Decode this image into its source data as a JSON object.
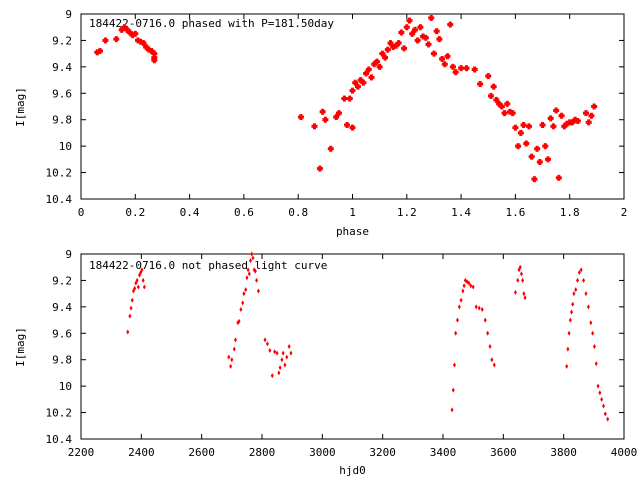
{
  "chart_data": [
    {
      "type": "scatter",
      "title": "184422-0716.0 phased with P=181.50day",
      "xlabel": "phase",
      "ylabel": "I[mag]",
      "xlim": [
        0,
        2
      ],
      "ylim": [
        9,
        10.4
      ],
      "y_inverted": true,
      "xticks": [
        "0",
        "0.2",
        "0.4",
        "0.6",
        "0.8",
        "1",
        "1.2",
        "1.4",
        "1.6",
        "1.8",
        "2"
      ],
      "yticks": [
        "9",
        "9.2",
        "9.4",
        "9.6",
        "9.8",
        "10",
        "10.2",
        "10.4"
      ],
      "xtick_values": [
        0,
        0.2,
        0.4,
        0.6,
        0.8,
        1,
        1.2,
        1.4,
        1.6,
        1.8,
        2
      ],
      "ytick_values": [
        9,
        9.2,
        9.4,
        9.6,
        9.8,
        10,
        10.2,
        10.4
      ],
      "marker_color": "#ff0000",
      "marker": "cross",
      "series": [
        {
          "x": [
            0.06,
            0.07,
            0.09,
            0.13,
            0.15,
            0.16,
            0.17,
            0.18,
            0.19,
            0.2,
            0.21,
            0.22,
            0.23,
            0.24,
            0.25,
            0.26,
            0.27,
            0.27,
            0.27,
            0.81,
            0.86,
            0.88,
            0.89,
            0.9,
            0.92,
            0.94,
            0.95,
            0.97,
            0.98,
            0.99,
            1.0,
            1.0,
            1.01,
            1.02,
            1.03,
            1.04,
            1.05,
            1.06,
            1.07,
            1.08,
            1.09,
            1.1,
            1.11,
            1.12,
            1.13,
            1.14,
            1.15,
            1.16,
            1.17,
            1.18,
            1.19,
            1.2,
            1.21,
            1.22,
            1.23,
            1.24,
            1.25,
            1.26,
            1.27,
            1.28,
            1.29,
            1.3,
            1.31,
            1.32,
            1.33,
            1.34,
            1.35,
            1.36,
            1.37,
            1.38,
            1.4,
            1.42,
            1.45,
            1.47,
            1.5,
            1.51,
            1.52,
            1.53,
            1.54,
            1.55,
            1.56,
            1.57,
            1.58,
            1.59,
            1.6,
            1.61,
            1.62,
            1.63,
            1.64,
            1.65,
            1.66,
            1.67,
            1.68,
            1.69,
            1.7,
            1.71,
            1.72,
            1.73,
            1.74,
            1.75,
            1.76,
            1.77,
            1.78,
            1.79,
            1.8,
            1.81,
            1.82,
            1.83,
            1.86,
            1.87,
            1.88,
            1.89
          ],
          "y": [
            9.29,
            9.28,
            9.2,
            9.19,
            9.12,
            9.1,
            9.12,
            9.14,
            9.16,
            9.15,
            9.2,
            9.21,
            9.22,
            9.25,
            9.27,
            9.28,
            9.3,
            9.33,
            9.35,
            9.78,
            9.85,
            10.17,
            9.74,
            9.8,
            10.02,
            9.78,
            9.75,
            9.64,
            9.84,
            9.64,
            9.58,
            9.86,
            9.52,
            9.55,
            9.5,
            9.52,
            9.45,
            9.42,
            9.48,
            9.38,
            9.36,
            9.4,
            9.3,
            9.33,
            9.27,
            9.22,
            9.25,
            9.24,
            9.22,
            9.14,
            9.26,
            9.1,
            9.05,
            9.15,
            9.12,
            9.2,
            9.1,
            9.17,
            9.18,
            9.23,
            9.03,
            9.3,
            9.13,
            9.19,
            9.34,
            9.38,
            9.32,
            9.08,
            9.4,
            9.44,
            9.41,
            9.41,
            9.42,
            9.53,
            9.47,
            9.62,
            9.55,
            9.65,
            9.68,
            9.7,
            9.75,
            9.68,
            9.74,
            9.75,
            9.86,
            10.0,
            9.9,
            9.84,
            9.98,
            9.85,
            10.08,
            10.25,
            10.02,
            10.12,
            9.84,
            10.0,
            10.1,
            9.79,
            9.85,
            9.73,
            10.24,
            9.77,
            9.85,
            9.83,
            9.82,
            9.82,
            9.8,
            9.81,
            9.75,
            9.82,
            9.77,
            9.7
          ]
        }
      ]
    },
    {
      "type": "scatter",
      "title": "184422-0716.0 not phased light curve",
      "xlabel": "hjd0",
      "ylabel": "I[mag]",
      "xlim": [
        2200,
        4000
      ],
      "ylim": [
        9,
        10.4
      ],
      "y_inverted": true,
      "xticks": [
        "2200",
        "2400",
        "2600",
        "2800",
        "3000",
        "3200",
        "3400",
        "3600",
        "3800",
        "4000"
      ],
      "yticks": [
        "9",
        "9.2",
        "9.4",
        "9.6",
        "9.8",
        "10",
        "10.2",
        "10.4"
      ],
      "xtick_values": [
        2200,
        2400,
        2600,
        2800,
        3000,
        3200,
        3400,
        3600,
        3800,
        4000
      ],
      "ytick_values": [
        9,
        9.2,
        9.4,
        9.6,
        9.8,
        10,
        10.2,
        10.4
      ],
      "marker_color": "#ff0000",
      "marker": "diamond",
      "series": [
        {
          "x": [
            2355,
            2362,
            2366,
            2370,
            2374,
            2378,
            2382,
            2386,
            2390,
            2394,
            2398,
            2402,
            2406,
            2410,
            2690,
            2696,
            2700,
            2708,
            2712,
            2720,
            2724,
            2730,
            2736,
            2740,
            2746,
            2750,
            2754,
            2758,
            2762,
            2766,
            2770,
            2774,
            2778,
            2782,
            2788,
            2810,
            2818,
            2826,
            2834,
            2842,
            2850,
            2856,
            2860,
            2866,
            2870,
            2876,
            2882,
            2890,
            2896,
            3430,
            3434,
            3438,
            3442,
            3448,
            3454,
            3460,
            3466,
            3470,
            3474,
            3480,
            3486,
            3492,
            3500,
            3510,
            3520,
            3530,
            3540,
            3548,
            3556,
            3562,
            3570,
            3640,
            3648,
            3652,
            3656,
            3660,
            3664,
            3668,
            3672,
            3810,
            3814,
            3818,
            3822,
            3826,
            3830,
            3834,
            3840,
            3846,
            3852,
            3858,
            3866,
            3874,
            3882,
            3890,
            3896,
            3902,
            3908,
            3914,
            3920,
            3926,
            3932,
            3938,
            3946
          ],
          "y": [
            9.59,
            9.47,
            9.41,
            9.35,
            9.28,
            9.26,
            9.22,
            9.2,
            9.25,
            9.16,
            9.14,
            9.12,
            9.2,
            9.25,
            9.78,
            9.85,
            9.8,
            9.72,
            9.65,
            9.52,
            9.51,
            9.42,
            9.37,
            9.3,
            9.27,
            9.18,
            9.12,
            9.15,
            9.05,
            9.0,
            9.03,
            9.12,
            9.13,
            9.2,
            9.28,
            9.65,
            9.68,
            9.73,
            9.92,
            9.74,
            9.75,
            9.9,
            9.86,
            9.8,
            9.75,
            9.84,
            9.78,
            9.7,
            9.75,
            10.18,
            10.03,
            9.84,
            9.6,
            9.5,
            9.4,
            9.35,
            9.28,
            9.24,
            9.2,
            9.21,
            9.22,
            9.24,
            9.25,
            9.4,
            9.41,
            9.42,
            9.5,
            9.6,
            9.7,
            9.8,
            9.84,
            9.29,
            9.2,
            9.12,
            9.1,
            9.15,
            9.2,
            9.3,
            9.33,
            9.85,
            9.72,
            9.6,
            9.5,
            9.44,
            9.38,
            9.3,
            9.27,
            9.2,
            9.14,
            9.12,
            9.2,
            9.3,
            9.4,
            9.52,
            9.6,
            9.7,
            9.83,
            10.0,
            10.05,
            10.1,
            10.15,
            10.21,
            10.25
          ]
        }
      ]
    }
  ]
}
